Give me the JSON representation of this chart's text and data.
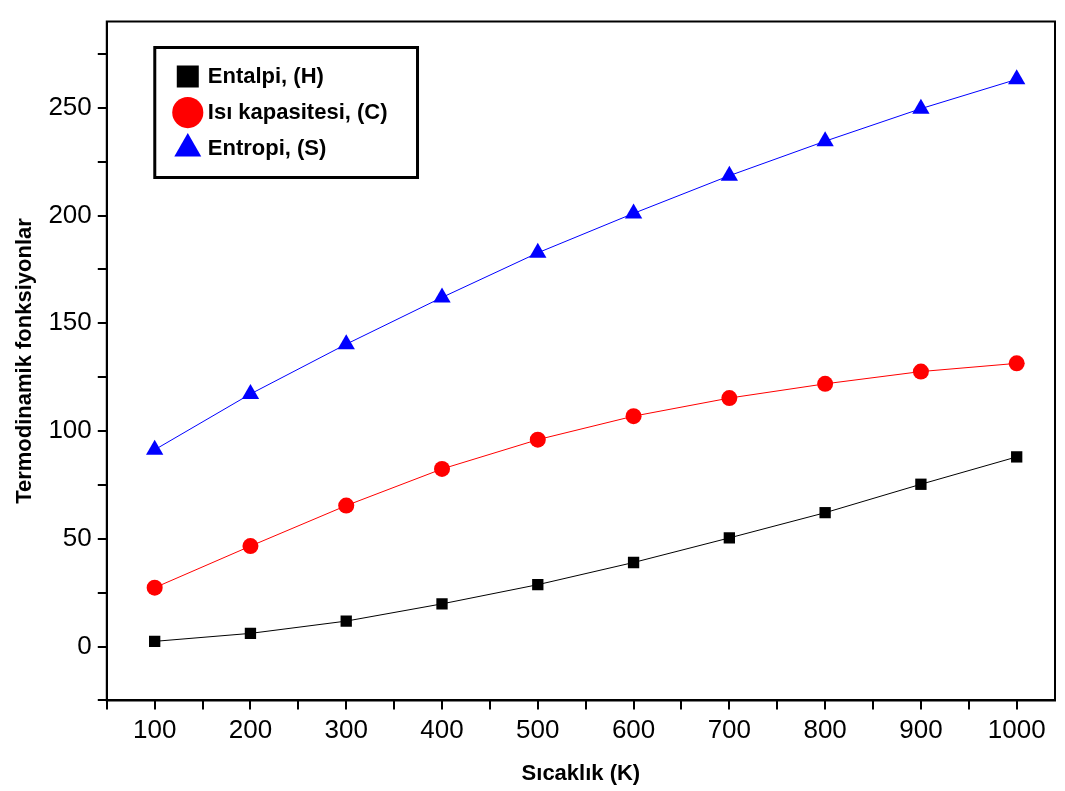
{
  "chart_data": {
    "type": "line",
    "xlabel": "Sıcaklık (K)",
    "ylabel": "Termodinamik fonksiyonlar",
    "x": [
      100,
      200,
      300,
      400,
      500,
      600,
      700,
      800,
      900,
      1000
    ],
    "series": [
      {
        "name": "Entalpi, (H)",
        "color": "#000000",
        "marker": "square",
        "values": [
          2.4,
          6.1,
          11.8,
          19.8,
          28.7,
          39,
          50.4,
          62.1,
          75.3,
          88
        ]
      },
      {
        "name": "Isı kapasitesi, (C)",
        "color": "#ff0000",
        "marker": "circle",
        "values": [
          27.3,
          46.6,
          65.4,
          82.4,
          96,
          106.9,
          115.3,
          121.9,
          127.6,
          131.4
        ]
      },
      {
        "name": "Entropi, (S)",
        "color": "#0000ff",
        "marker": "triangle",
        "values": [
          91.3,
          117.2,
          140.3,
          162,
          182.7,
          201,
          218.5,
          234.5,
          249.6,
          263.2
        ]
      }
    ],
    "xlim": [
      50,
      1040
    ],
    "xticks": [
      {
        "value": 50,
        "label": null
      },
      100,
      {
        "value": 150,
        "label": null
      },
      200,
      {
        "value": 250,
        "label": null
      },
      300,
      {
        "value": 350,
        "label": null
      },
      400,
      {
        "value": 450,
        "label": null
      },
      500,
      {
        "value": 550,
        "label": null
      },
      600,
      {
        "value": 650,
        "label": null
      },
      700,
      {
        "value": 750,
        "label": null
      },
      800,
      {
        "value": 850,
        "label": null
      },
      900,
      {
        "value": 950,
        "label": null
      },
      1000
    ],
    "ylim": [
      -25,
      290
    ],
    "yticks": [
      {
        "value": -25,
        "label": null
      },
      0,
      {
        "value": 25,
        "label": null
      },
      50,
      {
        "value": 75,
        "label": null
      },
      100,
      {
        "value": 125,
        "label": null
      },
      150,
      {
        "value": 175,
        "label": null
      },
      200,
      {
        "value": 225,
        "label": null
      },
      250,
      {
        "value": 275,
        "label": null
      }
    ],
    "grid": false,
    "legend": "top left",
    "line_style": "solid"
  }
}
